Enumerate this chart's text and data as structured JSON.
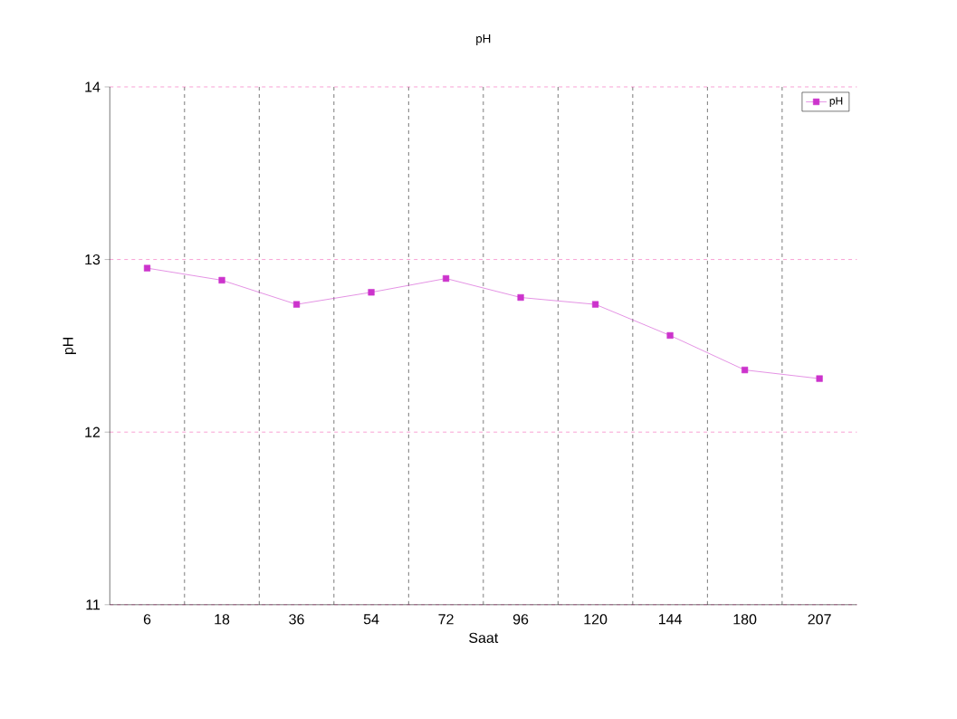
{
  "chart_data": {
    "type": "line",
    "title": "pH",
    "xlabel": "Saat",
    "ylabel": "pH",
    "categories": [
      "6",
      "18",
      "36",
      "54",
      "72",
      "96",
      "120",
      "144",
      "180",
      "207"
    ],
    "series": [
      {
        "name": "pH",
        "color": "#cc33cc",
        "values": [
          12.95,
          12.88,
          12.74,
          12.81,
          12.89,
          12.78,
          12.74,
          12.56,
          12.36,
          12.31
        ]
      }
    ],
    "ylim": [
      11,
      14
    ],
    "yticks": [
      11,
      12,
      13,
      14
    ],
    "grid": true,
    "legend": "top right",
    "marker": "square",
    "line_style": "solid"
  }
}
